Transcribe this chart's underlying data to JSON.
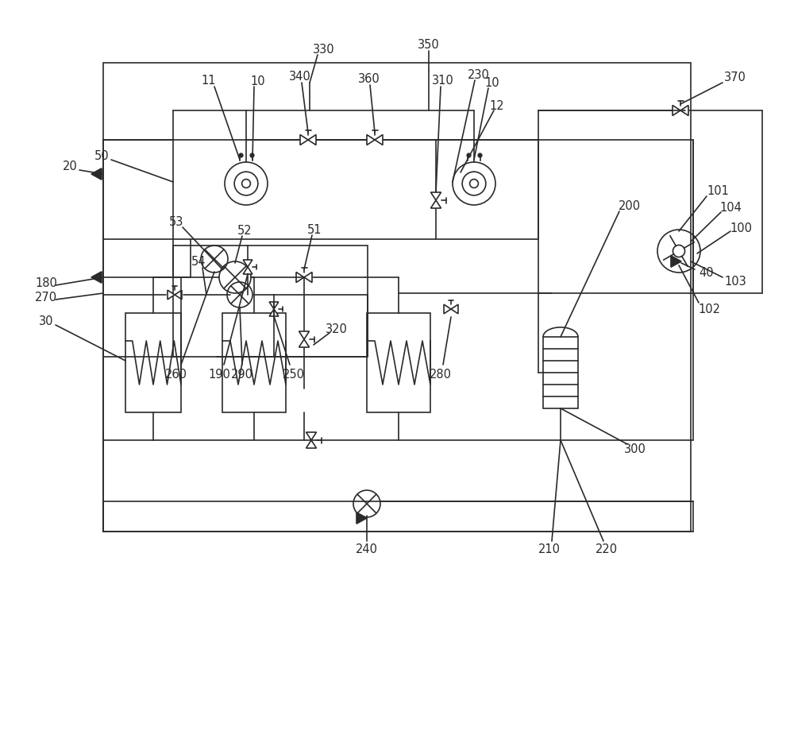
{
  "bg": "#ffffff",
  "lc": "#2a2a2a",
  "fs": 10.5,
  "fw": 10.0,
  "fh": 9.49
}
